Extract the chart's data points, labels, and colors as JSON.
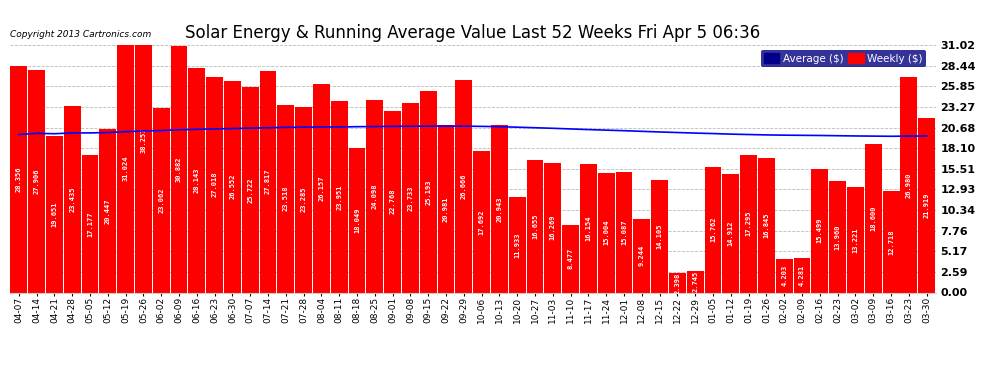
{
  "title": "Solar Energy & Running Average Value Last 52 Weeks Fri Apr 5 06:36",
  "copyright_text": "Copyright 2013 Cartronics.com",
  "categories": [
    "04-07",
    "04-14",
    "04-21",
    "04-28",
    "05-05",
    "05-12",
    "05-19",
    "05-26",
    "06-02",
    "06-09",
    "06-16",
    "06-23",
    "06-30",
    "07-07",
    "07-14",
    "07-21",
    "07-28",
    "08-04",
    "08-11",
    "08-18",
    "08-25",
    "09-01",
    "09-08",
    "09-15",
    "09-22",
    "09-29",
    "10-06",
    "10-13",
    "10-20",
    "10-27",
    "11-03",
    "11-10",
    "11-17",
    "11-24",
    "12-01",
    "12-08",
    "12-15",
    "12-22",
    "12-29",
    "01-05",
    "01-12",
    "01-19",
    "01-26",
    "02-02",
    "02-09",
    "02-16",
    "02-23",
    "03-02",
    "03-09",
    "03-16",
    "03-23",
    "03-30"
  ],
  "bar_values": [
    28.356,
    27.906,
    19.651,
    23.435,
    17.177,
    20.447,
    31.024,
    38.257,
    23.062,
    30.882,
    28.143,
    27.018,
    26.552,
    25.722,
    27.817,
    23.518,
    23.285,
    26.157,
    23.951,
    18.049,
    24.098,
    22.768,
    23.733,
    25.193,
    20.981,
    26.666,
    17.692,
    20.943,
    11.933,
    16.655,
    16.269,
    8.477,
    16.154,
    15.004,
    15.087,
    9.244,
    14.105,
    2.398,
    2.745,
    15.762,
    14.912,
    17.295,
    16.845,
    4.203,
    4.281,
    15.499,
    13.96,
    13.221,
    18.6,
    12.718,
    26.98,
    21.919
  ],
  "avg_values": [
    19.8,
    19.95,
    19.9,
    20.0,
    20.0,
    20.05,
    20.15,
    20.25,
    20.3,
    20.4,
    20.45,
    20.5,
    20.55,
    20.6,
    20.65,
    20.7,
    20.72,
    20.75,
    20.75,
    20.78,
    20.8,
    20.82,
    20.84,
    20.85,
    20.85,
    20.85,
    20.82,
    20.78,
    20.72,
    20.65,
    20.58,
    20.5,
    20.42,
    20.35,
    20.28,
    20.2,
    20.12,
    20.05,
    19.98,
    19.92,
    19.85,
    19.8,
    19.75,
    19.72,
    19.7,
    19.68,
    19.65,
    19.62,
    19.6,
    19.58,
    19.6,
    19.62
  ],
  "bar_color": "#FF0000",
  "avg_line_color": "#0000FF",
  "background_color": "#FFFFFF",
  "grid_color": "#BBBBBB",
  "yticks": [
    0.0,
    2.59,
    5.17,
    7.76,
    10.34,
    12.93,
    15.51,
    18.1,
    20.68,
    23.27,
    25.85,
    28.44,
    31.02
  ],
  "ymax": 31.02,
  "ymin": 0.0,
  "legend_avg_color": "#00008B",
  "legend_weekly_color": "#FF0000",
  "title_fontsize": 12,
  "label_fontsize": 5.0
}
